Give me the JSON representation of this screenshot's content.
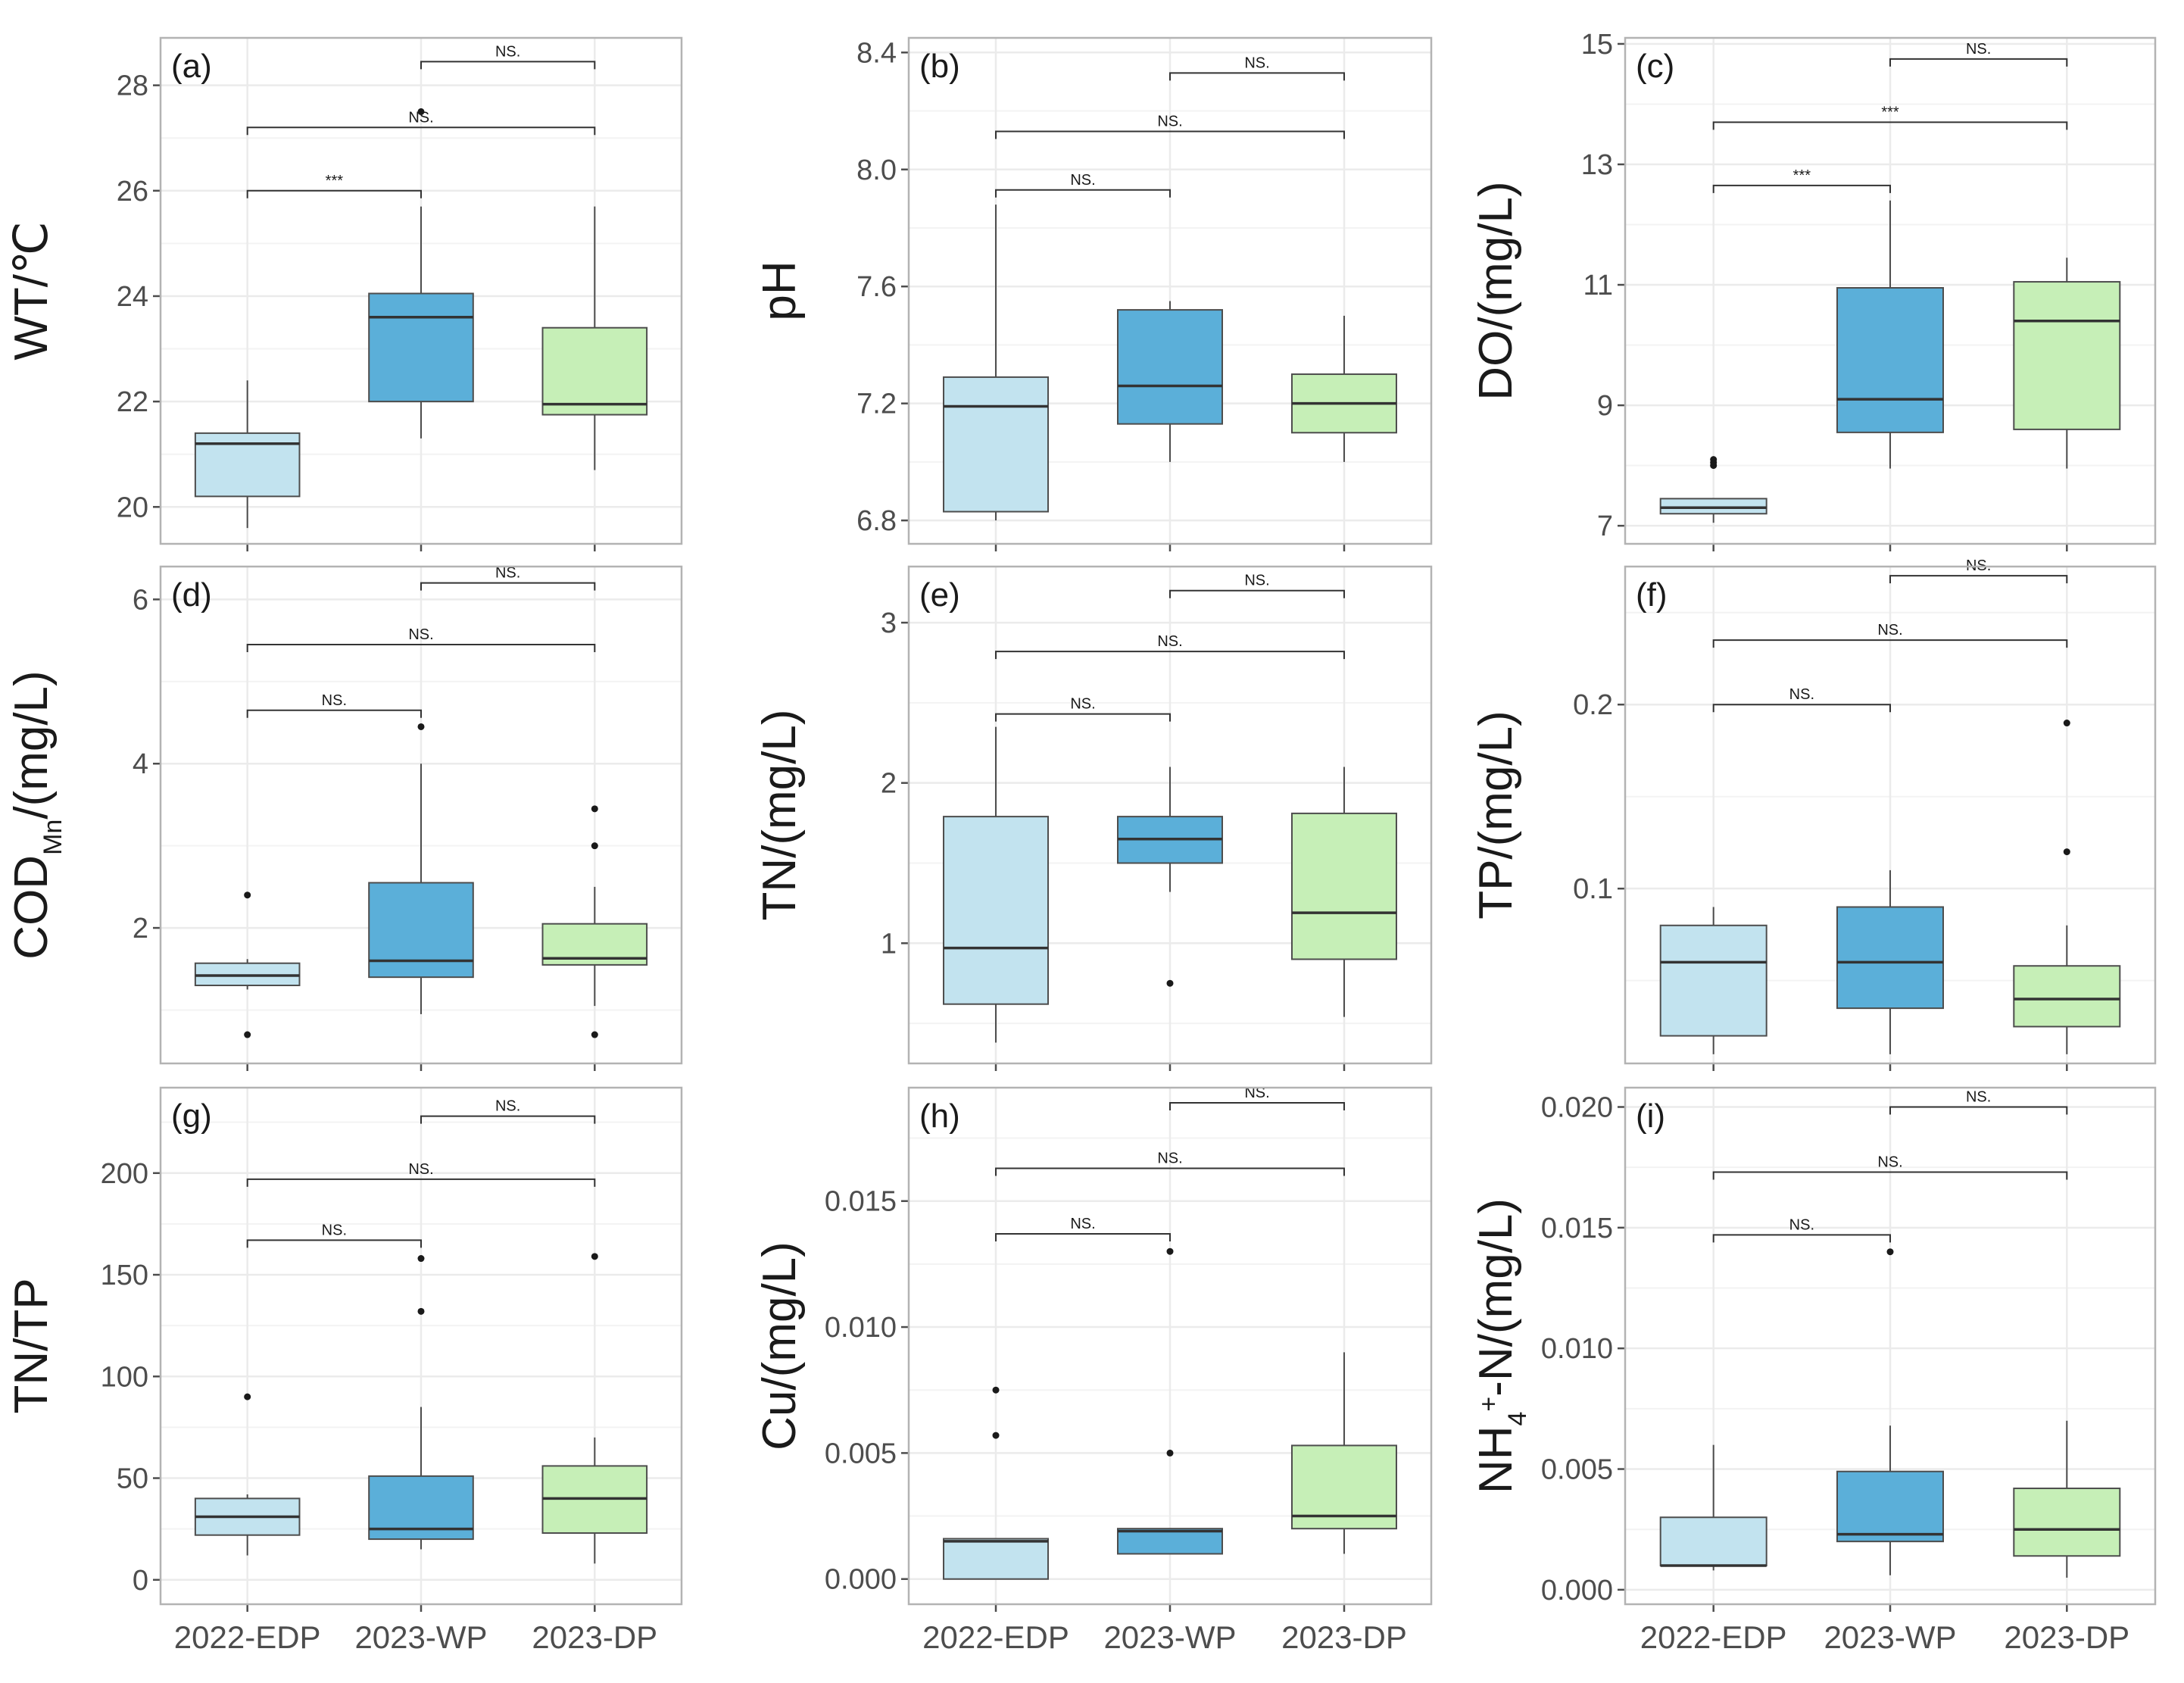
{
  "colors": {
    "2022-EDP": "#c2e3ef",
    "2023-WP": "#5bafd9",
    "2023-DP": "#c6efb7",
    "stroke": "#4d4d4d",
    "panel_border": "#b3b3b3",
    "grid": "#ebebeb"
  },
  "chart_data": [
    {
      "type": "box",
      "panel": "(a)",
      "ylabel": "WT/℃",
      "categories": [
        "2022-EDP",
        "2023-WP",
        "2023-DP"
      ],
      "ylim": [
        19.3,
        28.9
      ],
      "yticks": [
        20,
        22,
        24,
        26,
        28
      ],
      "boxes": [
        {
          "group": "2022-EDP",
          "q1": 20.2,
          "median": 21.2,
          "q3": 21.4,
          "whisker_low": 19.6,
          "whisker_high": 22.4,
          "outliers": []
        },
        {
          "group": "2023-WP",
          "q1": 22.0,
          "median": 23.6,
          "q3": 24.05,
          "whisker_low": 21.3,
          "whisker_high": 25.7,
          "outliers": [
            27.5
          ]
        },
        {
          "group": "2023-DP",
          "q1": 21.75,
          "median": 21.95,
          "q3": 23.4,
          "whisker_low": 20.7,
          "whisker_high": 25.7,
          "outliers": []
        }
      ],
      "significance": [
        {
          "from": "2022-EDP",
          "to": "2023-WP",
          "label": "***",
          "y": 26.0
        },
        {
          "from": "2022-EDP",
          "to": "2023-DP",
          "label": "NS.",
          "y": 27.2
        },
        {
          "from": "2023-WP",
          "to": "2023-DP",
          "label": "NS.",
          "y": 28.45
        }
      ]
    },
    {
      "type": "box",
      "panel": "(b)",
      "ylabel": "pH",
      "categories": [
        "2022-EDP",
        "2023-WP",
        "2023-DP"
      ],
      "ylim": [
        6.72,
        8.45
      ],
      "yticks": [
        6.8,
        7.2,
        7.6,
        8.0,
        8.4
      ],
      "boxes": [
        {
          "group": "2022-EDP",
          "q1": 6.83,
          "median": 7.19,
          "q3": 7.29,
          "whisker_low": 6.8,
          "whisker_high": 7.88,
          "outliers": []
        },
        {
          "group": "2023-WP",
          "q1": 7.13,
          "median": 7.26,
          "q3": 7.52,
          "whisker_low": 7.0,
          "whisker_high": 7.55,
          "outliers": []
        },
        {
          "group": "2023-DP",
          "q1": 7.1,
          "median": 7.2,
          "q3": 7.3,
          "whisker_low": 7.0,
          "whisker_high": 7.5,
          "outliers": []
        }
      ],
      "significance": [
        {
          "from": "2022-EDP",
          "to": "2023-WP",
          "label": "NS.",
          "y": 7.93
        },
        {
          "from": "2022-EDP",
          "to": "2023-DP",
          "label": "NS.",
          "y": 8.13
        },
        {
          "from": "2023-WP",
          "to": "2023-DP",
          "label": "NS.",
          "y": 8.33
        }
      ]
    },
    {
      "type": "box",
      "panel": "(c)",
      "ylabel": "DO/(mg/L)",
      "categories": [
        "2022-EDP",
        "2023-WP",
        "2023-DP"
      ],
      "ylim": [
        6.7,
        15.1
      ],
      "yticks": [
        7,
        9,
        11,
        13,
        15
      ],
      "boxes": [
        {
          "group": "2022-EDP",
          "q1": 7.2,
          "median": 7.3,
          "q3": 7.45,
          "whisker_low": 7.05,
          "whisker_high": 7.45,
          "outliers": [
            8.0,
            8.05,
            8.1
          ]
        },
        {
          "group": "2023-WP",
          "q1": 8.55,
          "median": 9.1,
          "q3": 10.95,
          "whisker_low": 7.95,
          "whisker_high": 12.4,
          "outliers": []
        },
        {
          "group": "2023-DP",
          "q1": 8.6,
          "median": 10.4,
          "q3": 11.05,
          "whisker_low": 7.95,
          "whisker_high": 11.45,
          "outliers": []
        }
      ],
      "significance": [
        {
          "from": "2022-EDP",
          "to": "2023-WP",
          "label": "***",
          "y": 12.65
        },
        {
          "from": "2022-EDP",
          "to": "2023-DP",
          "label": "***",
          "y": 13.7
        },
        {
          "from": "2023-WP",
          "to": "2023-DP",
          "label": "NS.",
          "y": 14.75
        }
      ]
    },
    {
      "type": "box",
      "panel": "(d)",
      "ylabel_main": "COD",
      "ylabel_sub": "Mn",
      "ylabel_tail": "/(mg/L)",
      "categories": [
        "2022-EDP",
        "2023-WP",
        "2023-DP"
      ],
      "ylim": [
        0.35,
        6.4
      ],
      "yticks": [
        2,
        4,
        6
      ],
      "boxes": [
        {
          "group": "2022-EDP",
          "q1": 1.3,
          "median": 1.42,
          "q3": 1.57,
          "whisker_low": 1.25,
          "whisker_high": 1.62,
          "outliers": [
            0.7,
            2.4
          ]
        },
        {
          "group": "2023-WP",
          "q1": 1.4,
          "median": 1.6,
          "q3": 2.55,
          "whisker_low": 0.95,
          "whisker_high": 4.0,
          "outliers": [
            4.45
          ]
        },
        {
          "group": "2023-DP",
          "q1": 1.55,
          "median": 1.63,
          "q3": 2.05,
          "whisker_low": 1.05,
          "whisker_high": 2.5,
          "outliers": [
            0.7,
            3.0,
            3.45
          ]
        }
      ],
      "significance": [
        {
          "from": "2022-EDP",
          "to": "2023-WP",
          "label": "NS.",
          "y": 4.65
        },
        {
          "from": "2022-EDP",
          "to": "2023-DP",
          "label": "NS.",
          "y": 5.45
        },
        {
          "from": "2023-WP",
          "to": "2023-DP",
          "label": "NS.",
          "y": 6.2
        }
      ]
    },
    {
      "type": "box",
      "panel": "(e)",
      "ylabel": "TN/(mg/L)",
      "categories": [
        "2022-EDP",
        "2023-WP",
        "2023-DP"
      ],
      "ylim": [
        0.25,
        3.35
      ],
      "yticks": [
        1,
        2,
        3
      ],
      "boxes": [
        {
          "group": "2022-EDP",
          "q1": 0.62,
          "median": 0.97,
          "q3": 1.79,
          "whisker_low": 0.38,
          "whisker_high": 2.35,
          "outliers": []
        },
        {
          "group": "2023-WP",
          "q1": 1.5,
          "median": 1.65,
          "q3": 1.79,
          "whisker_low": 1.32,
          "whisker_high": 2.1,
          "outliers": [
            0.75
          ]
        },
        {
          "group": "2023-DP",
          "q1": 0.9,
          "median": 1.19,
          "q3": 1.81,
          "whisker_low": 0.54,
          "whisker_high": 2.1,
          "outliers": []
        }
      ],
      "significance": [
        {
          "from": "2022-EDP",
          "to": "2023-WP",
          "label": "NS.",
          "y": 2.43
        },
        {
          "from": "2022-EDP",
          "to": "2023-DP",
          "label": "NS.",
          "y": 2.82
        },
        {
          "from": "2023-WP",
          "to": "2023-DP",
          "label": "NS.",
          "y": 3.2
        }
      ]
    },
    {
      "type": "box",
      "panel": "(f)",
      "ylabel": "TP/(mg/L)",
      "categories": [
        "2022-EDP",
        "2023-WP",
        "2023-DP"
      ],
      "ylim": [
        0.005,
        0.275
      ],
      "yticks": [
        0.1,
        0.2
      ],
      "boxes": [
        {
          "group": "2022-EDP",
          "q1": 0.02,
          "median": 0.06,
          "q3": 0.08,
          "whisker_low": 0.01,
          "whisker_high": 0.09,
          "outliers": []
        },
        {
          "group": "2023-WP",
          "q1": 0.035,
          "median": 0.06,
          "q3": 0.09,
          "whisker_low": 0.01,
          "whisker_high": 0.11,
          "outliers": []
        },
        {
          "group": "2023-DP",
          "q1": 0.025,
          "median": 0.04,
          "q3": 0.058,
          "whisker_low": 0.01,
          "whisker_high": 0.08,
          "outliers": [
            0.12,
            0.19
          ]
        }
      ],
      "significance": [
        {
          "from": "2022-EDP",
          "to": "2023-WP",
          "label": "NS.",
          "y": 0.2
        },
        {
          "from": "2022-EDP",
          "to": "2023-DP",
          "label": "NS.",
          "y": 0.235
        },
        {
          "from": "2023-WP",
          "to": "2023-DP",
          "label": "NS.",
          "y": 0.27
        }
      ]
    },
    {
      "type": "box",
      "panel": "(g)",
      "ylabel": "TN/TP",
      "categories": [
        "2022-EDP",
        "2023-WP",
        "2023-DP"
      ],
      "ylim": [
        -12,
        242
      ],
      "yticks": [
        0,
        50,
        100,
        150,
        200
      ],
      "boxes": [
        {
          "group": "2022-EDP",
          "q1": 22,
          "median": 31,
          "q3": 40,
          "whisker_low": 12,
          "whisker_high": 42,
          "outliers": [
            90
          ]
        },
        {
          "group": "2023-WP",
          "q1": 20,
          "median": 25,
          "q3": 51,
          "whisker_low": 15,
          "whisker_high": 85,
          "outliers": [
            132,
            158
          ]
        },
        {
          "group": "2023-DP",
          "q1": 23,
          "median": 40,
          "q3": 56,
          "whisker_low": 8,
          "whisker_high": 70,
          "outliers": [
            159
          ]
        }
      ],
      "significance": [
        {
          "from": "2022-EDP",
          "to": "2023-WP",
          "label": "NS.",
          "y": 167
        },
        {
          "from": "2022-EDP",
          "to": "2023-DP",
          "label": "NS.",
          "y": 197
        },
        {
          "from": "2023-WP",
          "to": "2023-DP",
          "label": "NS.",
          "y": 228
        }
      ]
    },
    {
      "type": "box",
      "panel": "(h)",
      "ylabel": "Cu/(mg/L)",
      "categories": [
        "2022-EDP",
        "2023-WP",
        "2023-DP"
      ],
      "ylim": [
        -0.001,
        0.0195
      ],
      "yticks": [
        0.0,
        0.005,
        0.01,
        0.015
      ],
      "ytick_labels": [
        "0.000",
        "0.005",
        "0.010",
        "0.015"
      ],
      "boxes": [
        {
          "group": "2022-EDP",
          "q1": 0.0,
          "median": 0.0015,
          "q3": 0.0016,
          "whisker_low": 0.0,
          "whisker_high": 0.0016,
          "outliers": [
            0.0057,
            0.0075
          ]
        },
        {
          "group": "2023-WP",
          "q1": 0.001,
          "median": 0.0019,
          "q3": 0.002,
          "whisker_low": 0.001,
          "whisker_high": 0.002,
          "outliers": [
            0.005,
            0.013
          ]
        },
        {
          "group": "2023-DP",
          "q1": 0.002,
          "median": 0.0025,
          "q3": 0.0053,
          "whisker_low": 0.001,
          "whisker_high": 0.009,
          "outliers": []
        }
      ],
      "significance": [
        {
          "from": "2022-EDP",
          "to": "2023-WP",
          "label": "NS.",
          "y": 0.0137
        },
        {
          "from": "2022-EDP",
          "to": "2023-DP",
          "label": "NS.",
          "y": 0.0163
        },
        {
          "from": "2023-WP",
          "to": "2023-DP",
          "label": "NS.",
          "y": 0.0189
        }
      ]
    },
    {
      "type": "box",
      "panel": "(i)",
      "ylabel_pre": "NH",
      "ylabel_sub": "4",
      "ylabel_sup": "+",
      "ylabel_tail": "-N/(mg/L)",
      "categories": [
        "2022-EDP",
        "2023-WP",
        "2023-DP"
      ],
      "ylim": [
        -0.0006,
        0.0208
      ],
      "yticks": [
        0.0,
        0.005,
        0.01,
        0.015,
        0.02
      ],
      "ytick_labels": [
        "0.000",
        "0.005",
        "0.010",
        "0.015",
        "0.020"
      ],
      "boxes": [
        {
          "group": "2022-EDP",
          "q1": 0.001,
          "median": 0.001,
          "q3": 0.003,
          "whisker_low": 0.0008,
          "whisker_high": 0.006,
          "outliers": []
        },
        {
          "group": "2023-WP",
          "q1": 0.002,
          "median": 0.0023,
          "q3": 0.0049,
          "whisker_low": 0.0006,
          "whisker_high": 0.0068,
          "outliers": [
            0.014
          ]
        },
        {
          "group": "2023-DP",
          "q1": 0.0014,
          "median": 0.0025,
          "q3": 0.0042,
          "whisker_low": 0.0005,
          "whisker_high": 0.007,
          "outliers": []
        }
      ],
      "significance": [
        {
          "from": "2022-EDP",
          "to": "2023-WP",
          "label": "NS.",
          "y": 0.0147
        },
        {
          "from": "2022-EDP",
          "to": "2023-DP",
          "label": "NS.",
          "y": 0.0173
        },
        {
          "from": "2023-WP",
          "to": "2023-DP",
          "label": "NS.",
          "y": 0.02
        }
      ]
    }
  ]
}
